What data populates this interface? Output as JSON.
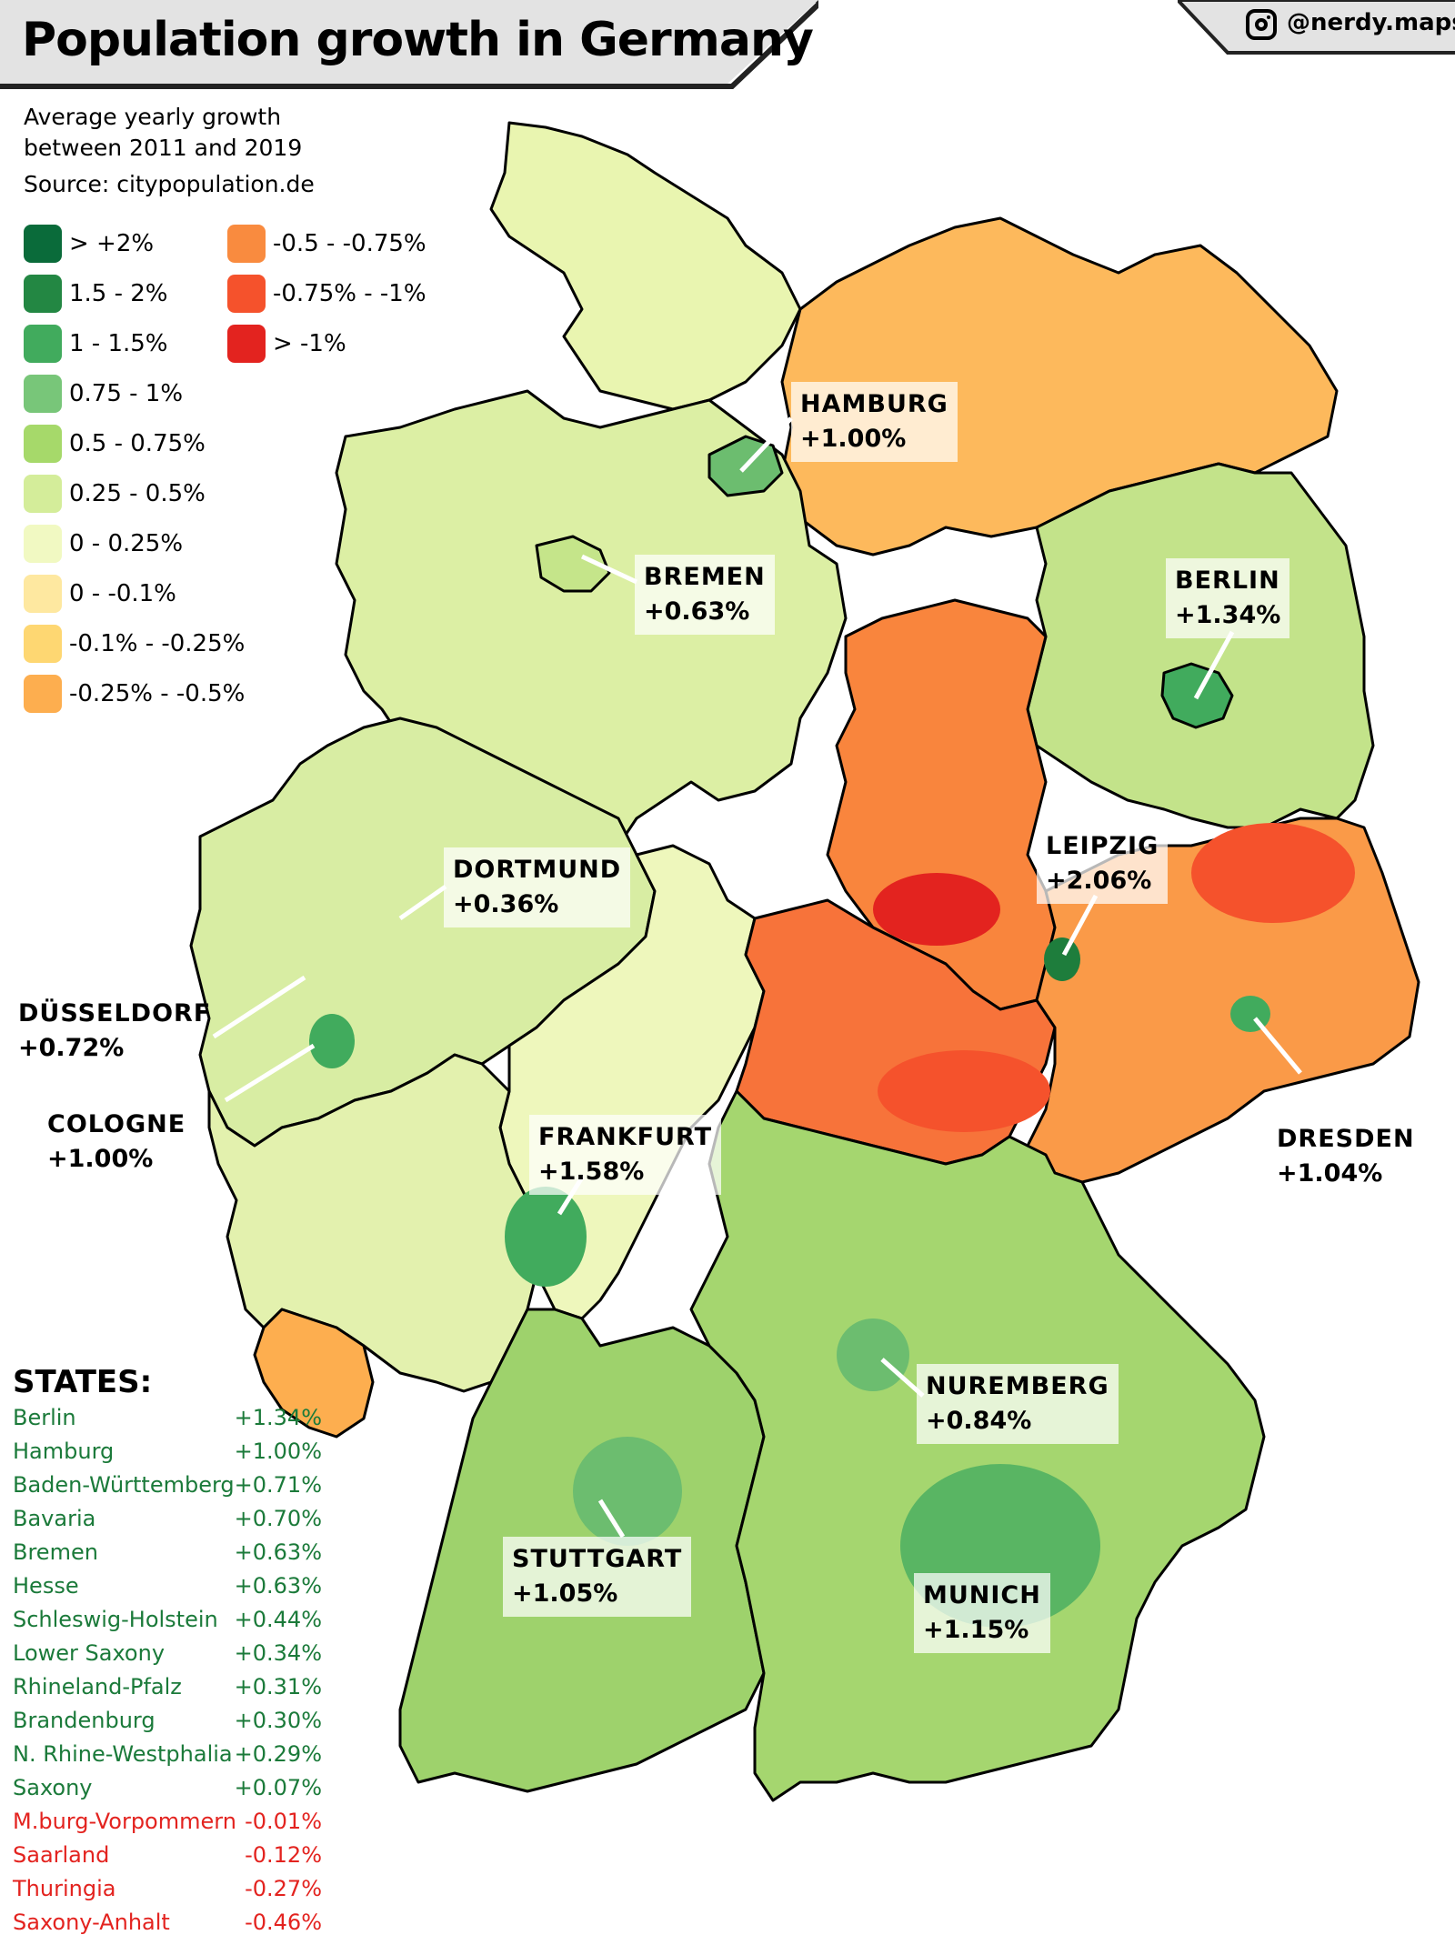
{
  "header": {
    "title": "Population growth in Germany",
    "handle": "@nerdy.maps",
    "subtitle_line1": "Average yearly growth",
    "subtitle_line2": "between 2011 and 2019",
    "source": "Source: citypopulation.de"
  },
  "legend": {
    "items": [
      {
        "label": "> +2%",
        "color": "#0a6b3a"
      },
      {
        "label": "1.5 - 2%",
        "color": "#238743"
      },
      {
        "label": "1 - 1.5%",
        "color": "#41ab5d"
      },
      {
        "label": "0.75 - 1%",
        "color": "#78c679"
      },
      {
        "label": "0.5 - 0.75%",
        "color": "#a6d96a"
      },
      {
        "label": "0.25 - 0.5%",
        "color": "#d4ed9a"
      },
      {
        "label": "0 - 0.25%",
        "color": "#f1f9c2"
      },
      {
        "label": "0 - -0.1%",
        "color": "#fee8a0"
      },
      {
        "label": "-0.1% - -0.25%",
        "color": "#fed772"
      },
      {
        "label": "-0.25% - -0.5%",
        "color": "#fdae4f"
      },
      {
        "label": "-0.5 - -0.75%",
        "color": "#f98b3f"
      },
      {
        "label": "-0.75% - -1%",
        "color": "#f5522c"
      },
      {
        "label": "> -1%",
        "color": "#e3231f"
      }
    ]
  },
  "cities": [
    {
      "name": "HAMBURG",
      "value": "+1.00%"
    },
    {
      "name": "BREMEN",
      "value": "+0.63%"
    },
    {
      "name": "BERLIN",
      "value": "+1.34%"
    },
    {
      "name": "DORTMUND",
      "value": "+0.36%"
    },
    {
      "name": "LEIPZIG",
      "value": "+2.06%"
    },
    {
      "name": "DÜSSELDORF",
      "value": "+0.72%"
    },
    {
      "name": "COLOGNE",
      "value": "+1.00%"
    },
    {
      "name": "FRANKFURT",
      "value": "+1.58%"
    },
    {
      "name": "DRESDEN",
      "value": "+1.04%"
    },
    {
      "name": "NUREMBERG",
      "value": "+0.84%"
    },
    {
      "name": "STUTTGART",
      "value": "+1.05%"
    },
    {
      "name": "MUNICH",
      "value": "+1.15%"
    }
  ],
  "states": {
    "title": "STATES:",
    "positive_color": "#1b7a3a",
    "negative_color": "#e3231f",
    "rows": [
      {
        "name": "Berlin",
        "value": "+1.34%",
        "sign": "positive"
      },
      {
        "name": "Hamburg",
        "value": "+1.00%",
        "sign": "positive"
      },
      {
        "name": "Baden-Württemberg",
        "value": "+0.71%",
        "sign": "positive"
      },
      {
        "name": "Bavaria",
        "value": "+0.70%",
        "sign": "positive"
      },
      {
        "name": "Bremen",
        "value": "+0.63%",
        "sign": "positive"
      },
      {
        "name": "Hesse",
        "value": "+0.63%",
        "sign": "positive"
      },
      {
        "name": "Schleswig-Holstein",
        "value": "+0.44%",
        "sign": "positive"
      },
      {
        "name": "Lower Saxony",
        "value": "+0.34%",
        "sign": "positive"
      },
      {
        "name": "Rhineland-Pfalz",
        "value": "+0.31%",
        "sign": "positive"
      },
      {
        "name": "Brandenburg",
        "value": "+0.30%",
        "sign": "positive"
      },
      {
        "name": "N. Rhine-Westphalia",
        "value": "+0.29%",
        "sign": "positive"
      },
      {
        "name": "Saxony",
        "value": "+0.07%",
        "sign": "positive"
      },
      {
        "name": "M.burg-Vorpommern",
        "value": "-0.01%",
        "sign": "negative"
      },
      {
        "name": "Saarland",
        "value": "-0.12%",
        "sign": "negative"
      },
      {
        "name": "Thuringia",
        "value": "-0.27%",
        "sign": "negative"
      },
      {
        "name": "Saxony-Anhalt",
        "value": "-0.46%",
        "sign": "negative"
      }
    ]
  },
  "map_colors": {
    "schleswig_holstein": "#e9f5b0",
    "mecklenburg": "#fdb95c",
    "lower_saxony": "#dcefa4",
    "bremen": "#c5e58a",
    "hamburg": "#6cbd6f",
    "brandenburg": "#c3e38a",
    "berlin": "#41ab5d",
    "saxony_anhalt": "#f9853d",
    "nrw": "#d8eda3",
    "hesse": "#eef7bc",
    "thuringia": "#f7733a",
    "saxony": "#fa9a48",
    "rhineland_palatinate": "#e3f1ae",
    "saarland": "#fdae4f",
    "baden_wuerttemberg": "#9ed26c",
    "bavaria": "#a5d66f",
    "border": "#000000"
  }
}
